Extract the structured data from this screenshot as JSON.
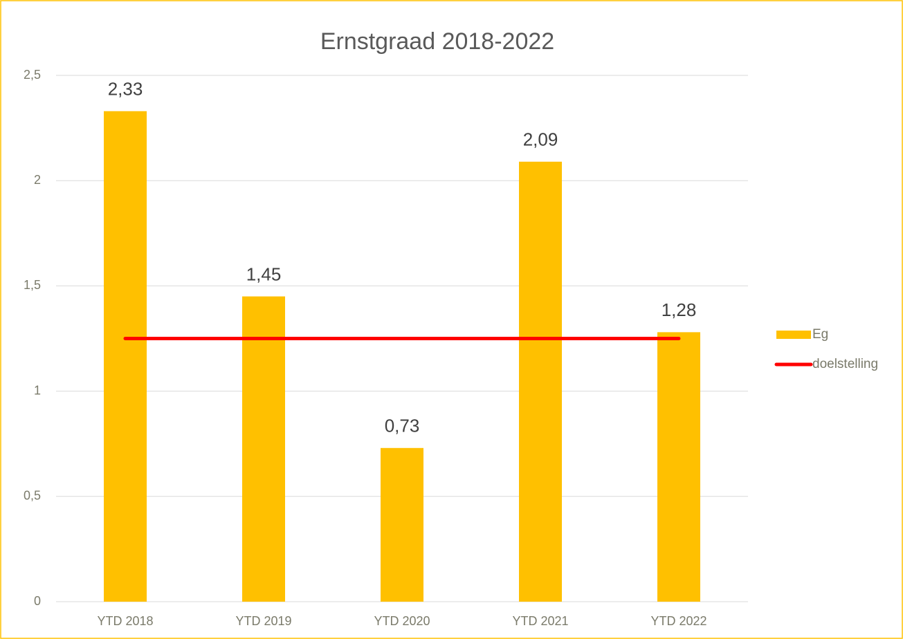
{
  "chart_data": {
    "type": "bar",
    "title": "Ernstgraad 2018-2022",
    "categories": [
      "YTD 2018",
      "YTD 2019",
      "YTD 2020",
      "YTD 2021",
      "YTD 2022"
    ],
    "series": [
      {
        "name": "Eg",
        "type": "bar",
        "color": "#FFC000",
        "values": [
          2.33,
          1.45,
          0.73,
          2.09,
          1.28
        ],
        "value_labels": [
          "2,33",
          "1,45",
          "0,73",
          "2,09",
          "1,28"
        ]
      },
      {
        "name": "doelstelling",
        "type": "line",
        "color": "#FF0000",
        "values": [
          1.25,
          1.25,
          1.25,
          1.25,
          1.25
        ]
      }
    ],
    "ylim": [
      0,
      2.5
    ],
    "yticks": [
      0,
      {
        "value": 0.5,
        "label": "0,5"
      },
      1,
      {
        "value": 1.5,
        "label": "1,5"
      },
      2,
      {
        "value": 2.5,
        "label": "2,5"
      }
    ],
    "grid": true,
    "legend": "right"
  }
}
